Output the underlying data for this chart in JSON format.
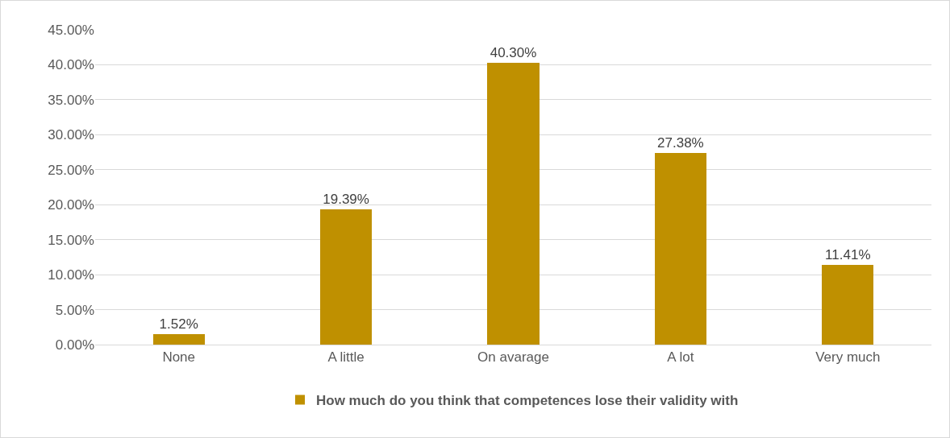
{
  "chart_data": {
    "type": "bar",
    "categories": [
      "None",
      "A little",
      "On avarage",
      "A lot",
      "Very much"
    ],
    "series": [
      {
        "name": "How much do you think that competences lose their validity with",
        "color": "#bf9000",
        "values": [
          1.52,
          19.39,
          40.3,
          27.38,
          11.41
        ],
        "value_labels": [
          "1.52%",
          "19.39%",
          "40.30%",
          "27.38%",
          "11.41%"
        ]
      }
    ],
    "ylim": [
      0,
      45
    ],
    "yticks": [
      {
        "value": 0,
        "label": "0.00%"
      },
      {
        "value": 5,
        "label": "5.00%"
      },
      {
        "value": 10,
        "label": "10.00%"
      },
      {
        "value": 15,
        "label": "15.00%"
      },
      {
        "value": 20,
        "label": "20.00%"
      },
      {
        "value": 25,
        "label": "25.00%"
      },
      {
        "value": 30,
        "label": "30.00%"
      },
      {
        "value": 35,
        "label": "35.00%"
      },
      {
        "value": 40,
        "label": "40.00%"
      },
      {
        "value": 45,
        "label": "45.00%"
      }
    ],
    "grid": "y",
    "legend": "bottom"
  }
}
